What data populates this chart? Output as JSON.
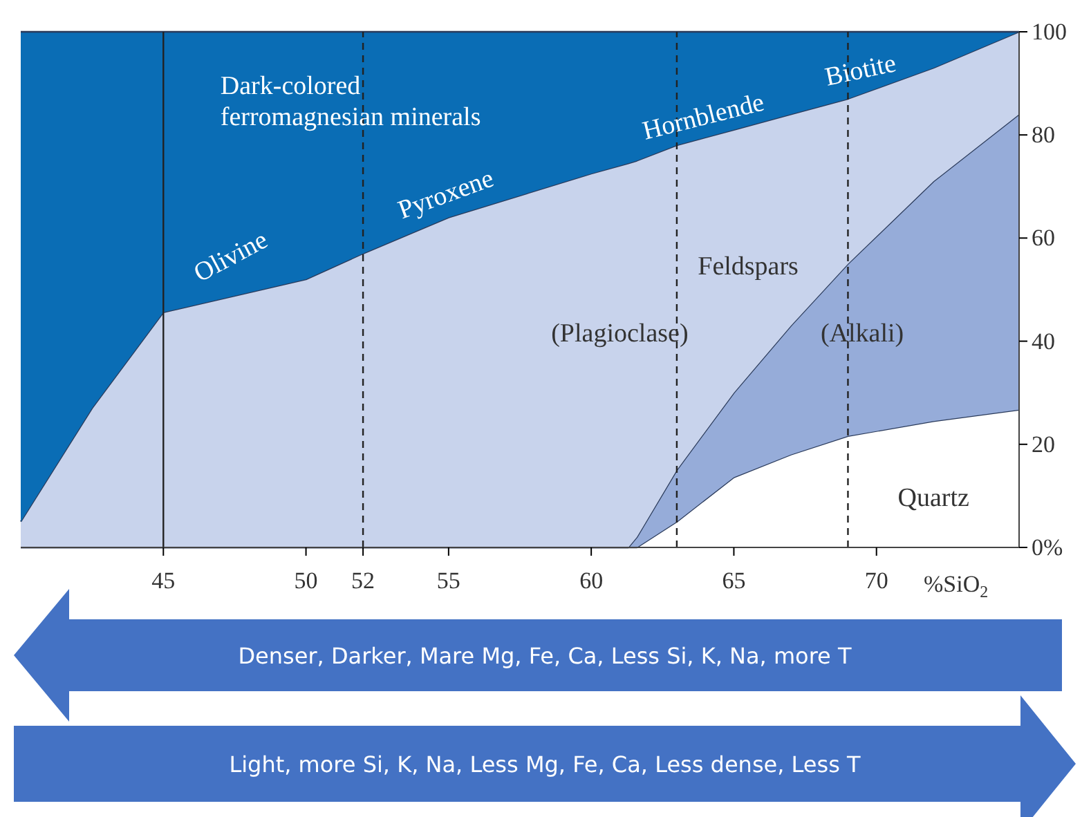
{
  "chart_data": {
    "type": "area",
    "stacked": true,
    "xlabel": "%SiO$_{2}$",
    "x": [
      40,
      42.5,
      45,
      50,
      52,
      55,
      60,
      61.3,
      61.6,
      63,
      65,
      67,
      69,
      72,
      75
    ],
    "xlim": [
      40,
      75
    ],
    "xticks": [
      45,
      50,
      52,
      55,
      60,
      65,
      70
    ],
    "ylim": [
      0,
      100
    ],
    "yticks": [
      {
        "value": 0,
        "label": "0%"
      },
      20,
      40,
      60,
      80,
      100
    ],
    "series": [
      {
        "name": "Quartz",
        "color": "#ffffff",
        "values": [
          0,
          0,
          0,
          0,
          0,
          0,
          0,
          0,
          0,
          5,
          13.6,
          18,
          21.6,
          24.5,
          26.7
        ]
      },
      {
        "name": "(Alkali)",
        "color": "#96acd9",
        "values": [
          0,
          0,
          0,
          0,
          0,
          0,
          0,
          0,
          2,
          10,
          16.4,
          25,
          33.4,
          46.5,
          57.3
        ]
      },
      {
        "name": "(Plagioclase)",
        "color": "#c8d3ec",
        "values": [
          5,
          27,
          45.6,
          52,
          57,
          64,
          72.5,
          74.5,
          73,
          63,
          51,
          41,
          32,
          22,
          16
        ]
      },
      {
        "name": "Dark-colored ferromagnesian minerals",
        "color": "#0a6db5",
        "values": [
          95,
          73,
          54.4,
          48,
          43,
          36,
          27.5,
          25.5,
          25,
          22,
          19,
          16,
          13,
          7,
          0
        ]
      }
    ],
    "ref_lines": [
      {
        "axis": "x",
        "value": 45,
        "line_style": "solid"
      },
      {
        "axis": "x",
        "value": 52,
        "line_style": "dashed"
      },
      {
        "axis": "x",
        "value": 63,
        "line_style": "dashed"
      },
      {
        "axis": "x",
        "value": 69,
        "line_style": "dashed"
      }
    ],
    "annotations": [
      "Olivine",
      "Pyroxene",
      "Hornblende",
      "Biotite",
      "Feldspars",
      "Denser, Darker, Mare Mg, Fe, Ca, Less Si, K, Na, more T",
      "Light, more Si, K, Na, Less Mg, Fe, Ca, Less dense, Less T"
    ]
  }
}
